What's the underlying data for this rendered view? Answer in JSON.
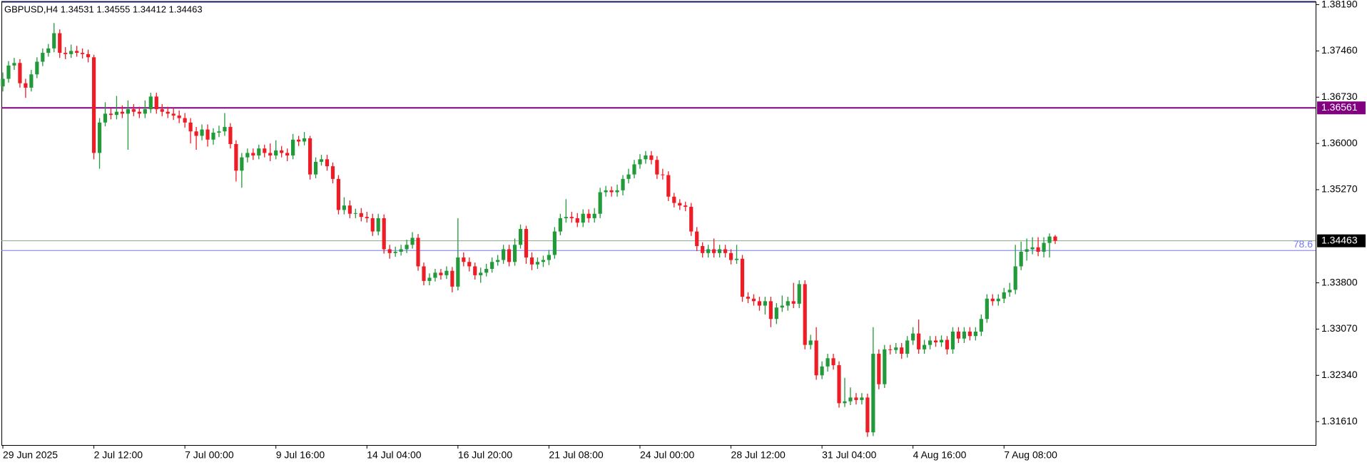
{
  "chart_data": {
    "type": "candlestick",
    "title": "GBPUSD,H4  1.34531 1.34555 1.34412 1.34463",
    "up_color": "#229a3a",
    "down_color": "#ee1c25",
    "ylim": [
      1.3124,
      1.3823
    ],
    "yticks": [
      {
        "value": 1.3819,
        "label": "1.38190"
      },
      {
        "value": 1.3746,
        "label": "1.37460"
      },
      {
        "value": 1.3673,
        "label": "1.36730"
      },
      {
        "value": 1.36,
        "label": "1.36000"
      },
      {
        "value": 1.3527,
        "label": "1.35270"
      },
      {
        "value": 1.338,
        "label": "1.33800"
      },
      {
        "value": 1.3307,
        "label": "1.33070"
      },
      {
        "value": 1.3234,
        "label": "1.32340"
      },
      {
        "value": 1.3161,
        "label": "1.31610"
      }
    ],
    "hlines": [
      {
        "value": 1.36561,
        "color": "#800080",
        "style": "axis-box"
      },
      {
        "value": 1.3431,
        "color": "#7777ff",
        "label": "78.6",
        "style": "level"
      },
      {
        "value": 1.34463,
        "color": "#8aa88a",
        "style": "price-box"
      }
    ],
    "categories": [
      "29 Jun 2025",
      null,
      null,
      null,
      null,
      null,
      null,
      null,
      null,
      null,
      null,
      null,
      null,
      null,
      null,
      null,
      "2 Jul 12:00",
      null,
      null,
      null,
      null,
      null,
      null,
      null,
      null,
      null,
      null,
      null,
      null,
      null,
      null,
      null,
      "7 Jul 00:00",
      null,
      null,
      null,
      null,
      null,
      null,
      null,
      null,
      null,
      null,
      null,
      null,
      null,
      null,
      null,
      "9 Jul 16:00",
      null,
      null,
      null,
      null,
      null,
      null,
      null,
      null,
      null,
      null,
      null,
      null,
      null,
      null,
      null,
      "14 Jul 04:00",
      null,
      null,
      null,
      null,
      null,
      null,
      null,
      null,
      null,
      null,
      null,
      null,
      null,
      null,
      null,
      "16 Jul 20:00",
      null,
      null,
      null,
      null,
      null,
      null,
      null,
      null,
      null,
      null,
      null,
      null,
      null,
      null,
      null,
      "21 Jul 08:00",
      null,
      null,
      null,
      null,
      null,
      null,
      null,
      null,
      null,
      null,
      null,
      null,
      null,
      null,
      null,
      "24 Jul 00:00",
      null,
      null,
      null,
      null,
      null,
      null,
      null,
      null,
      null,
      null,
      null,
      null,
      null,
      null,
      null,
      "28 Jul 12:00",
      null,
      null,
      null,
      null,
      null,
      null,
      null,
      null,
      null,
      null,
      null,
      null,
      null,
      null,
      null,
      "31 Jul 04:00",
      null,
      null,
      null,
      null,
      null,
      null,
      null,
      null,
      null,
      null,
      null,
      null,
      null,
      null,
      null,
      "4 Aug 16:00",
      null,
      null,
      null,
      null,
      null,
      null,
      null,
      null,
      null,
      null,
      null,
      null,
      null,
      null,
      null,
      "7 Aug 08:00",
      null,
      null,
      null,
      null,
      null,
      null,
      null,
      null,
      null
    ],
    "open": [
      1.369,
      1.3702,
      1.3723,
      1.3727,
      1.3695,
      1.3688,
      1.3709,
      1.3729,
      1.3743,
      1.375,
      1.3774,
      1.3743,
      1.3741,
      1.3746,
      1.3743,
      1.3741,
      1.3736,
      1.3585,
      1.3633,
      1.3647,
      1.3645,
      1.365,
      1.3647,
      1.3654,
      1.365,
      1.3647,
      1.3654,
      1.3674,
      1.3654,
      1.365,
      1.3647,
      1.3644,
      1.364,
      1.3633,
      1.3619,
      1.3612,
      1.3622,
      1.3606,
      1.3617,
      1.3619,
      1.3626,
      1.3599,
      1.3557,
      1.3578,
      1.3585,
      1.3581,
      1.3592,
      1.3585,
      1.3581,
      1.3589,
      1.3585,
      1.3581,
      1.3606,
      1.3603,
      1.3608,
      1.3551,
      1.3571,
      1.3575,
      1.3564,
      1.3544,
      1.3495,
      1.3502,
      1.3489,
      1.349,
      1.3484,
      1.3482,
      1.3461,
      1.3482,
      1.3433,
      1.3427,
      1.3429,
      1.3433,
      1.344,
      1.3451,
      1.3406,
      1.3383,
      1.3388,
      1.3396,
      1.3392,
      1.3399,
      1.3374,
      1.342,
      1.3413,
      1.3406,
      1.3392,
      1.3396,
      1.3402,
      1.3413,
      1.3416,
      1.3433,
      1.3413,
      1.344,
      1.3465,
      1.342,
      1.3409,
      1.3413,
      1.3416,
      1.3424,
      1.3461,
      1.3482,
      1.3484,
      1.3482,
      1.3475,
      1.3489,
      1.3482,
      1.3489,
      1.3523,
      1.3526,
      1.3523,
      1.3526,
      1.3544,
      1.3551,
      1.3567,
      1.3575,
      1.3581,
      1.3574,
      1.3551,
      1.355,
      1.3516,
      1.3506,
      1.3502,
      1.35,
      1.3461,
      1.3438,
      1.3427,
      1.3433,
      1.3427,
      1.3433,
      1.3427,
      1.3416,
      1.3418,
      1.3358,
      1.3355,
      1.3351,
      1.3344,
      1.3351,
      1.3323,
      1.3341,
      1.3344,
      1.3351,
      1.3347,
      1.3378,
      1.3282,
      1.3289,
      1.3234,
      1.3248,
      1.3261,
      1.325,
      1.319,
      1.3193,
      1.3199,
      1.3195,
      1.3199,
      1.3144,
      1.3268,
      1.322,
      1.3275,
      1.3274,
      1.3278,
      1.3268,
      1.3289,
      1.33,
      1.3275,
      1.3282,
      1.3289,
      1.3286,
      1.329,
      1.3275,
      1.3303,
      1.3292,
      1.3303,
      1.3296,
      1.3303,
      1.3323,
      1.3355,
      1.3351,
      1.3355,
      1.3365,
      1.3369,
      1.3406,
      1.3429,
      1.3433,
      1.3436,
      1.3429,
      1.3443,
      1.34531
    ],
    "high": [
      1.3712,
      1.373,
      1.3735,
      1.3733,
      1.3702,
      1.3716,
      1.3736,
      1.375,
      1.3757,
      1.379,
      1.378,
      1.3752,
      1.3756,
      1.3754,
      1.375,
      1.3748,
      1.374,
      1.364,
      1.3665,
      1.3655,
      1.3675,
      1.366,
      1.3668,
      1.3662,
      1.3658,
      1.3668,
      1.368,
      1.368,
      1.3662,
      1.3658,
      1.3656,
      1.3652,
      1.3648,
      1.364,
      1.3626,
      1.363,
      1.363,
      1.3624,
      1.3628,
      1.3648,
      1.3632,
      1.3605,
      1.3585,
      1.3592,
      1.3592,
      1.3598,
      1.3598,
      1.36,
      1.3605,
      1.3596,
      1.3592,
      1.3615,
      1.3612,
      1.3618,
      1.3612,
      1.3578,
      1.3582,
      1.3582,
      1.357,
      1.355,
      1.3515,
      1.351,
      1.3497,
      1.3498,
      1.3492,
      1.3489,
      1.3489,
      1.3488,
      1.344,
      1.3437,
      1.344,
      1.3448,
      1.346,
      1.3457,
      1.3412,
      1.3395,
      1.3402,
      1.3402,
      1.3406,
      1.3405,
      1.3482,
      1.3428,
      1.342,
      1.3412,
      1.3404,
      1.341,
      1.342,
      1.3424,
      1.344,
      1.344,
      1.345,
      1.3472,
      1.347,
      1.3428,
      1.342,
      1.3423,
      1.3432,
      1.3468,
      1.3489,
      1.3512,
      1.3492,
      1.349,
      1.3496,
      1.3496,
      1.3498,
      1.353,
      1.3533,
      1.3532,
      1.3535,
      1.355,
      1.356,
      1.3574,
      1.3583,
      1.3588,
      1.3588,
      1.358,
      1.356,
      1.3556,
      1.3522,
      1.3512,
      1.3508,
      1.3506,
      1.3468,
      1.3444,
      1.344,
      1.345,
      1.344,
      1.344,
      1.3433,
      1.344,
      1.3424,
      1.3365,
      1.3362,
      1.3358,
      1.3358,
      1.3358,
      1.3348,
      1.336,
      1.3358,
      1.338,
      1.3384,
      1.3384,
      1.3298,
      1.331,
      1.3256,
      1.3268,
      1.3268,
      1.3256,
      1.323,
      1.3215,
      1.3206,
      1.3206,
      1.3205,
      1.331,
      1.3275,
      1.3282,
      1.3282,
      1.3285,
      1.3285,
      1.3296,
      1.331,
      1.3322,
      1.329,
      1.3296,
      1.3296,
      1.3297,
      1.3296,
      1.331,
      1.331,
      1.331,
      1.331,
      1.331,
      1.333,
      1.3362,
      1.3362,
      1.3362,
      1.3372,
      1.338,
      1.344,
      1.3445,
      1.345,
      1.3452,
      1.3452,
      1.3452,
      1.3458,
      1.34555
    ],
    "low": [
      1.3682,
      1.3696,
      1.3716,
      1.3688,
      1.3672,
      1.3682,
      1.3703,
      1.3722,
      1.3737,
      1.3744,
      1.3735,
      1.3733,
      1.3735,
      1.3737,
      1.3734,
      1.3728,
      1.3575,
      1.356,
      1.3627,
      1.3638,
      1.3638,
      1.364,
      1.359,
      1.3643,
      1.364,
      1.364,
      1.3648,
      1.3647,
      1.3643,
      1.364,
      1.3637,
      1.3632,
      1.3625,
      1.36,
      1.359,
      1.3605,
      1.3595,
      1.3598,
      1.361,
      1.3612,
      1.3592,
      1.354,
      1.353,
      1.357,
      1.3574,
      1.3575,
      1.3578,
      1.3572,
      1.3575,
      1.3578,
      1.3572,
      1.3575,
      1.3596,
      1.3597,
      1.3543,
      1.3545,
      1.3565,
      1.3557,
      1.3537,
      1.3488,
      1.3488,
      1.3482,
      1.3482,
      1.3477,
      1.3475,
      1.3454,
      1.3455,
      1.3426,
      1.3418,
      1.3421,
      1.3423,
      1.3427,
      1.3434,
      1.3399,
      1.3376,
      1.3376,
      1.3382,
      1.3385,
      1.3386,
      1.3365,
      1.3368,
      1.3406,
      1.3398,
      1.3385,
      1.338,
      1.339,
      1.3396,
      1.3407,
      1.341,
      1.3406,
      1.3407,
      1.3434,
      1.341,
      1.34,
      1.3402,
      1.3405,
      1.3408,
      1.3418,
      1.3455,
      1.3475,
      1.3475,
      1.3468,
      1.3468,
      1.3475,
      1.3475,
      1.3482,
      1.3516,
      1.3516,
      1.3516,
      1.3518,
      1.3537,
      1.3545,
      1.356,
      1.3568,
      1.3567,
      1.3544,
      1.3543,
      1.3509,
      1.3499,
      1.3495,
      1.3493,
      1.3454,
      1.343,
      1.342,
      1.342,
      1.342,
      1.342,
      1.342,
      1.3409,
      1.341,
      1.335,
      1.3348,
      1.3344,
      1.3336,
      1.333,
      1.331,
      1.3315,
      1.3334,
      1.3336,
      1.334,
      1.334,
      1.3275,
      1.3275,
      1.3227,
      1.3228,
      1.324,
      1.3243,
      1.3183,
      1.3184,
      1.3187,
      1.3188,
      1.3188,
      1.3137,
      1.3138,
      1.3212,
      1.3214,
      1.3267,
      1.3268,
      1.326,
      1.3262,
      1.3282,
      1.3268,
      1.3268,
      1.3275,
      1.3279,
      1.3279,
      1.3267,
      1.3268,
      1.3285,
      1.3285,
      1.3289,
      1.3289,
      1.3296,
      1.3317,
      1.3344,
      1.3344,
      1.3348,
      1.3358,
      1.3362,
      1.34,
      1.3415,
      1.3425,
      1.3422,
      1.342,
      1.342,
      1.34412
    ],
    "close": [
      1.3702,
      1.3723,
      1.3727,
      1.3695,
      1.3688,
      1.3709,
      1.3729,
      1.3743,
      1.375,
      1.3774,
      1.3743,
      1.3741,
      1.3746,
      1.3743,
      1.3741,
      1.3736,
      1.3585,
      1.3633,
      1.3647,
      1.3645,
      1.365,
      1.3647,
      1.3654,
      1.365,
      1.3647,
      1.3654,
      1.3674,
      1.3654,
      1.365,
      1.3647,
      1.3644,
      1.364,
      1.3633,
      1.3619,
      1.3612,
      1.3622,
      1.3606,
      1.3617,
      1.3619,
      1.3626,
      1.3599,
      1.3557,
      1.3578,
      1.3585,
      1.3581,
      1.3592,
      1.3585,
      1.3581,
      1.3589,
      1.3585,
      1.3581,
      1.3606,
      1.3603,
      1.3608,
      1.3551,
      1.3571,
      1.3575,
      1.3564,
      1.3544,
      1.3495,
      1.3502,
      1.3489,
      1.349,
      1.3484,
      1.3482,
      1.3461,
      1.3482,
      1.3433,
      1.3427,
      1.3429,
      1.3433,
      1.344,
      1.3451,
      1.3406,
      1.3383,
      1.3388,
      1.3396,
      1.3392,
      1.3399,
      1.3374,
      1.342,
      1.3413,
      1.3406,
      1.3392,
      1.3396,
      1.3402,
      1.3413,
      1.3416,
      1.3433,
      1.3413,
      1.344,
      1.3465,
      1.342,
      1.3409,
      1.3413,
      1.3416,
      1.3424,
      1.3461,
      1.3482,
      1.3484,
      1.3482,
      1.3475,
      1.3489,
      1.3482,
      1.3489,
      1.3523,
      1.3526,
      1.3523,
      1.3526,
      1.3544,
      1.3551,
      1.3567,
      1.3575,
      1.3581,
      1.3574,
      1.3551,
      1.355,
      1.3516,
      1.3506,
      1.3502,
      1.35,
      1.3461,
      1.3438,
      1.3427,
      1.3433,
      1.3427,
      1.3433,
      1.3427,
      1.3416,
      1.3418,
      1.3358,
      1.3355,
      1.3351,
      1.3344,
      1.3351,
      1.3323,
      1.3341,
      1.3344,
      1.3351,
      1.3347,
      1.3378,
      1.3282,
      1.3289,
      1.3234,
      1.3248,
      1.3261,
      1.325,
      1.319,
      1.3193,
      1.3199,
      1.3195,
      1.3199,
      1.3144,
      1.3268,
      1.322,
      1.3275,
      1.3274,
      1.3278,
      1.3268,
      1.3289,
      1.33,
      1.3275,
      1.3282,
      1.3289,
      1.3286,
      1.329,
      1.3275,
      1.3303,
      1.3292,
      1.3303,
      1.3296,
      1.3303,
      1.3323,
      1.3355,
      1.3351,
      1.3355,
      1.3365,
      1.3369,
      1.3406,
      1.3429,
      1.3433,
      1.3436,
      1.3429,
      1.3443,
      1.34531,
      1.34463
    ]
  }
}
